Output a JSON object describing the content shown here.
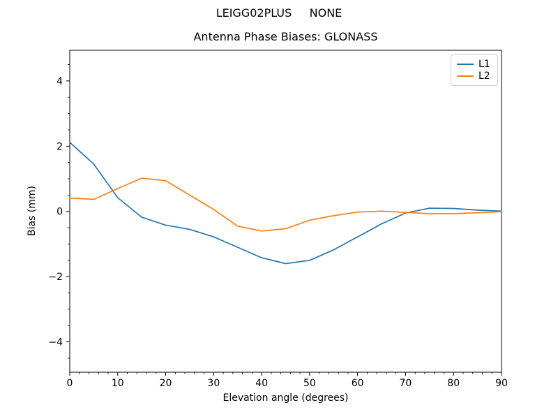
{
  "header": {
    "suptitle": "LEIGG02PLUS     NONE"
  },
  "legend": {
    "entries": [
      {
        "label": "L1",
        "color": "#1f77b4"
      },
      {
        "label": "L2",
        "color": "#ff7f0e"
      }
    ]
  },
  "chart_data": {
    "type": "line",
    "title": "Antenna Phase Biases: GLONASS",
    "xlabel": "Elevation angle (degrees)",
    "ylabel": "Bias (mm)",
    "x": [
      0,
      5,
      10,
      15,
      20,
      25,
      30,
      35,
      40,
      45,
      50,
      55,
      60,
      65,
      70,
      75,
      80,
      85,
      90
    ],
    "series": [
      {
        "name": "L1",
        "color": "#1f77b4",
        "values": [
          2.12,
          1.45,
          0.42,
          -0.18,
          -0.42,
          -0.55,
          -0.78,
          -1.1,
          -1.42,
          -1.6,
          -1.5,
          -1.18,
          -0.78,
          -0.38,
          -0.05,
          0.1,
          0.09,
          0.04,
          0.01
        ]
      },
      {
        "name": "L2",
        "color": "#ff7f0e",
        "values": [
          0.41,
          0.37,
          0.7,
          1.02,
          0.94,
          0.5,
          0.06,
          -0.45,
          -0.6,
          -0.53,
          -0.27,
          -0.13,
          -0.02,
          0.01,
          -0.03,
          -0.07,
          -0.07,
          -0.04,
          -0.01
        ]
      }
    ],
    "xlim": [
      0,
      90
    ],
    "ylim": [
      -4.93,
      4.94
    ],
    "xticks": [
      0,
      10,
      20,
      30,
      40,
      50,
      60,
      70,
      80,
      90
    ],
    "xtick_labels": [
      "0",
      "10",
      "20",
      "30",
      "40",
      "50",
      "60",
      "70",
      "80",
      "90"
    ],
    "yticks": [
      -4,
      -2,
      0,
      2,
      4
    ],
    "ytick_labels": [
      "−4",
      "−2",
      "0",
      "2",
      "4"
    ],
    "minor_xtick_step": 2,
    "minor_ytick_step": 0.5,
    "grid": false,
    "legend_position": "upper right",
    "line_color_l1": "#1f77b4",
    "line_color_l2": "#ff7f0e"
  }
}
